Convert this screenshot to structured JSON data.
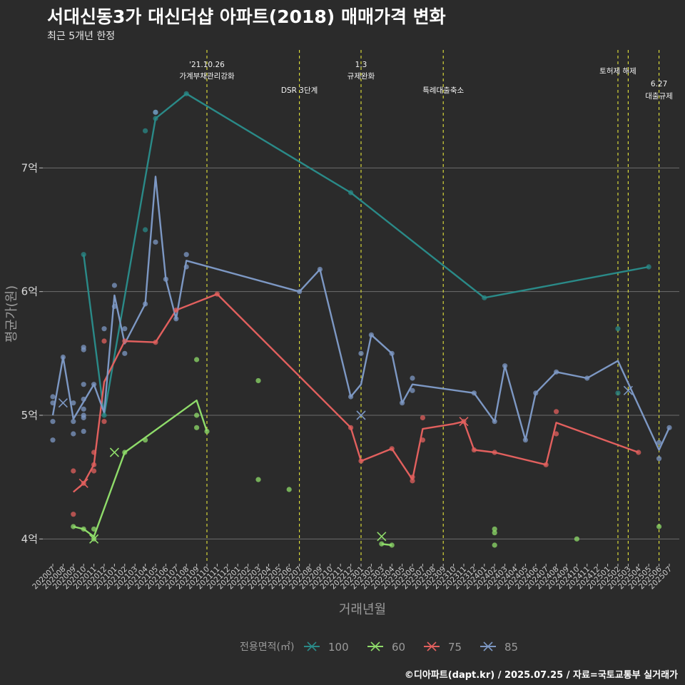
{
  "header": {
    "title": "서대신동3가 대신더샵 아파트(2018) 매매가격 변화",
    "subtitle": "최근 5개년 한정"
  },
  "footer": {
    "caption": "©디아파트(dapt.kr) / 2025.07.25 / 자료=국토교통부 실거래가"
  },
  "chart_data": {
    "type": "line",
    "title": "서대신동3가 대신더샵 아파트(2018) 매매가격 변화",
    "subtitle": "최근 5개년 한정",
    "xlabel": "거래년월",
    "ylabel": "평균가(원)",
    "ylim": [
      3.8,
      8.0
    ],
    "y_ticks": [
      {
        "value": 4,
        "label": "4억"
      },
      {
        "value": 5,
        "label": "5억"
      },
      {
        "value": 6,
        "label": "6억"
      },
      {
        "value": 7,
        "label": "7억"
      }
    ],
    "x_ticks": [
      "202007",
      "202008",
      "202009",
      "202010",
      "202011",
      "202012",
      "202101",
      "202102",
      "202103",
      "202104",
      "202105",
      "202106",
      "202107",
      "202108",
      "202109",
      "202110",
      "202111",
      "202112",
      "202201",
      "202202",
      "202203",
      "202204",
      "202205",
      "202206",
      "202207",
      "202208",
      "202209",
      "202210",
      "202211",
      "202212",
      "202301",
      "202302",
      "202303",
      "202304",
      "202305",
      "202306",
      "202307",
      "202308",
      "202309",
      "202310",
      "202311",
      "202312",
      "202401",
      "202402",
      "202403",
      "202404",
      "202405",
      "202406",
      "202407",
      "202408",
      "202409",
      "202410",
      "202411",
      "202412",
      "202501",
      "202502",
      "202503",
      "202504",
      "202505",
      "202506",
      "202507"
    ],
    "grid": true,
    "legend": {
      "title": "전용면적(㎡)",
      "position": "bottom"
    },
    "events": [
      {
        "month": "202110",
        "lines": [
          "'21.10.26",
          "가계부채관리강화"
        ]
      },
      {
        "month": "202207",
        "lines": [
          "DSR 3단계"
        ]
      },
      {
        "month": "202301",
        "lines": [
          "1.3",
          "규제완화"
        ]
      },
      {
        "month": "202309",
        "lines": [
          "특례대출축소"
        ]
      },
      {
        "month": "202502",
        "lines": [
          "토허제 해제"
        ]
      },
      {
        "month": "202503",
        "lines": []
      },
      {
        "month": "202506",
        "lines": [
          "6.27",
          "대출규제"
        ]
      }
    ],
    "series": [
      {
        "name": "100",
        "color": "#2a8a88",
        "line": [
          [
            "202010",
            6.3
          ],
          [
            "202012",
            5.0
          ],
          [
            "202105",
            7.4
          ],
          [
            "202108",
            7.6
          ],
          [
            "202212",
            6.8
          ],
          [
            "202401",
            5.95
          ],
          [
            "202505",
            6.2
          ]
        ],
        "points": [
          [
            "202010",
            6.3
          ],
          [
            "202012",
            5.0
          ],
          [
            "202104",
            7.3
          ],
          [
            "202104",
            6.5
          ],
          [
            "202105",
            7.45
          ],
          [
            "202105",
            7.4
          ],
          [
            "202108",
            7.6
          ],
          [
            "202212",
            6.8
          ],
          [
            "202401",
            5.95
          ],
          [
            "202502",
            5.7
          ],
          [
            "202502",
            5.18
          ],
          [
            "202505",
            6.2
          ]
        ],
        "markers": []
      },
      {
        "name": "60",
        "color": "#8fdc6a",
        "line": [
          [
            "202009",
            4.1
          ],
          [
            "202010",
            4.08
          ],
          [
            "202011",
            4.02
          ],
          [
            "202102",
            4.7
          ],
          [
            "202109",
            5.12
          ],
          [
            "202110",
            4.87
          ]
        ],
        "extra_line": [
          [
            "202303",
            3.96
          ],
          [
            "202304",
            3.95
          ]
        ],
        "points": [
          [
            "202009",
            4.1
          ],
          [
            "202010",
            4.08
          ],
          [
            "202011",
            4.08
          ],
          [
            "202011",
            4.0
          ],
          [
            "202102",
            4.7
          ],
          [
            "202104",
            4.8
          ],
          [
            "202109",
            5.45
          ],
          [
            "202109",
            5.0
          ],
          [
            "202109",
            4.9
          ],
          [
            "202110",
            4.87
          ],
          [
            "202203",
            5.28
          ],
          [
            "202203",
            4.48
          ],
          [
            "202206",
            4.4
          ],
          [
            "202303",
            3.96
          ],
          [
            "202304",
            3.95
          ],
          [
            "202402",
            4.08
          ],
          [
            "202402",
            4.05
          ],
          [
            "202402",
            3.95
          ],
          [
            "202410",
            4.0
          ],
          [
            "202506",
            4.1
          ]
        ],
        "markers": [
          [
            "202011",
            4.0
          ],
          [
            "202101",
            4.7
          ],
          [
            "202303",
            4.02
          ]
        ]
      },
      {
        "name": "75",
        "color": "#e2605e",
        "line": [
          [
            "202009",
            4.38
          ],
          [
            "202010",
            4.45
          ],
          [
            "202011",
            4.6
          ],
          [
            "202012",
            5.27
          ],
          [
            "202102",
            5.6
          ],
          [
            "202105",
            5.59
          ],
          [
            "202107",
            5.85
          ],
          [
            "202111",
            5.98
          ],
          [
            "202212",
            4.9
          ],
          [
            "202301",
            4.63
          ],
          [
            "202304",
            4.73
          ],
          [
            "202306",
            4.48
          ],
          [
            "202307",
            4.89
          ],
          [
            "202310",
            4.93
          ],
          [
            "202311",
            4.95
          ],
          [
            "202312",
            4.72
          ],
          [
            "202402",
            4.7
          ],
          [
            "202407",
            4.6
          ],
          [
            "202408",
            4.94
          ],
          [
            "202504",
            4.7
          ]
        ],
        "points": [
          [
            "202009",
            4.55
          ],
          [
            "202009",
            4.2
          ],
          [
            "202010",
            4.45
          ],
          [
            "202011",
            4.7
          ],
          [
            "202011",
            4.6
          ],
          [
            "202011",
            4.55
          ],
          [
            "202012",
            5.6
          ],
          [
            "202012",
            4.95
          ],
          [
            "202102",
            5.6
          ],
          [
            "202105",
            5.59
          ],
          [
            "202107",
            5.85
          ],
          [
            "202111",
            5.98
          ],
          [
            "202212",
            4.9
          ],
          [
            "202301",
            4.63
          ],
          [
            "202304",
            4.73
          ],
          [
            "202306",
            4.5
          ],
          [
            "202306",
            4.47
          ],
          [
            "202307",
            4.98
          ],
          [
            "202307",
            4.8
          ],
          [
            "202311",
            4.95
          ],
          [
            "202312",
            4.72
          ],
          [
            "202402",
            4.7
          ],
          [
            "202407",
            4.6
          ],
          [
            "202408",
            5.03
          ],
          [
            "202408",
            4.85
          ],
          [
            "202504",
            4.7
          ]
        ],
        "markers": [
          [
            "202010",
            4.45
          ],
          [
            "202311",
            4.95
          ]
        ]
      },
      {
        "name": "85",
        "color": "#7d98c4",
        "line": [
          [
            "202007",
            5.0
          ],
          [
            "202008",
            5.47
          ],
          [
            "202009",
            4.97
          ],
          [
            "202011",
            5.25
          ],
          [
            "202012",
            5.02
          ],
          [
            "202101",
            5.97
          ],
          [
            "202102",
            5.58
          ],
          [
            "202104",
            5.9
          ],
          [
            "202105",
            6.93
          ],
          [
            "202106",
            6.1
          ],
          [
            "202107",
            5.78
          ],
          [
            "202108",
            6.25
          ],
          [
            "202207",
            6.0
          ],
          [
            "202209",
            6.18
          ],
          [
            "202212",
            5.15
          ],
          [
            "202301",
            5.25
          ],
          [
            "202302",
            5.65
          ],
          [
            "202304",
            5.5
          ],
          [
            "202305",
            5.1
          ],
          [
            "202306",
            5.25
          ],
          [
            "202312",
            5.18
          ],
          [
            "202402",
            4.95
          ],
          [
            "202403",
            5.4
          ],
          [
            "202405",
            4.8
          ],
          [
            "202406",
            5.18
          ],
          [
            "202408",
            5.35
          ],
          [
            "202411",
            5.3
          ],
          [
            "202502",
            5.44
          ],
          [
            "202506",
            4.72
          ],
          [
            "202507",
            4.9
          ]
        ],
        "points": [
          [
            "202007",
            5.15
          ],
          [
            "202007",
            5.1
          ],
          [
            "202007",
            4.95
          ],
          [
            "202007",
            4.8
          ],
          [
            "202008",
            5.47
          ],
          [
            "202009",
            5.1
          ],
          [
            "202009",
            4.95
          ],
          [
            "202009",
            4.85
          ],
          [
            "202010",
            5.55
          ],
          [
            "202010",
            5.53
          ],
          [
            "202010",
            5.25
          ],
          [
            "202010",
            5.13
          ],
          [
            "202010",
            5.05
          ],
          [
            "202010",
            5.0
          ],
          [
            "202010",
            4.98
          ],
          [
            "202010",
            4.87
          ],
          [
            "202011",
            5.25
          ],
          [
            "202012",
            5.7
          ],
          [
            "202101",
            6.05
          ],
          [
            "202101",
            5.88
          ],
          [
            "202102",
            5.7
          ],
          [
            "202102",
            5.5
          ],
          [
            "202104",
            5.9
          ],
          [
            "202105",
            7.45
          ],
          [
            "202105",
            6.4
          ],
          [
            "202106",
            6.1
          ],
          [
            "202107",
            5.78
          ],
          [
            "202108",
            6.3
          ],
          [
            "202108",
            6.2
          ],
          [
            "202207",
            6.0
          ],
          [
            "202209",
            6.18
          ],
          [
            "202212",
            5.15
          ],
          [
            "202301",
            5.5
          ],
          [
            "202302",
            5.65
          ],
          [
            "202304",
            5.5
          ],
          [
            "202305",
            5.1
          ],
          [
            "202306",
            5.3
          ],
          [
            "202306",
            5.2
          ],
          [
            "202312",
            5.18
          ],
          [
            "202402",
            4.95
          ],
          [
            "202403",
            5.4
          ],
          [
            "202405",
            4.8
          ],
          [
            "202406",
            5.18
          ],
          [
            "202408",
            5.35
          ],
          [
            "202411",
            5.3
          ],
          [
            "202506",
            4.78
          ],
          [
            "202506",
            4.65
          ],
          [
            "202507",
            4.9
          ]
        ],
        "markers": [
          [
            "202008",
            5.1
          ],
          [
            "202301",
            5.0
          ],
          [
            "202503",
            5.2
          ]
        ]
      }
    ]
  }
}
